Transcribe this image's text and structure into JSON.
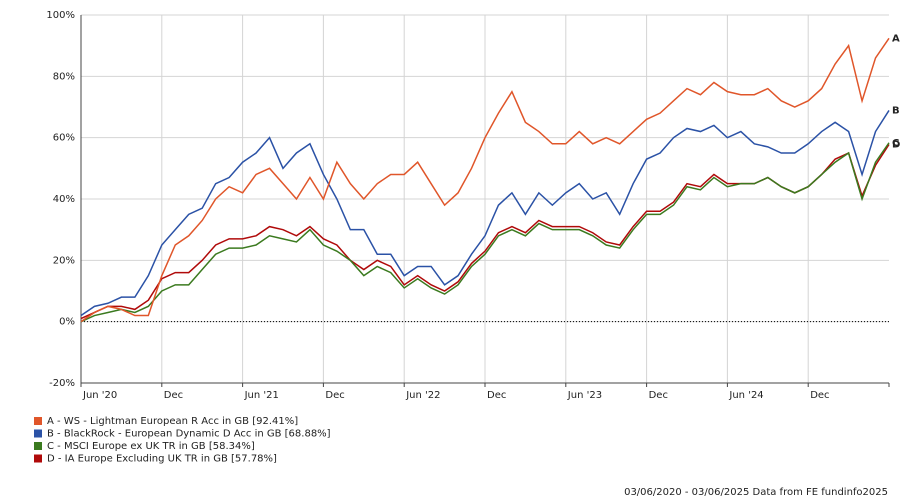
{
  "chart_data": {
    "type": "line",
    "categories": [
      "Jun '20",
      null,
      null,
      null,
      null,
      null,
      "Dec",
      null,
      null,
      null,
      null,
      null,
      "Jun '21",
      null,
      null,
      null,
      null,
      null,
      "Dec",
      null,
      null,
      null,
      null,
      null,
      "Jun '22",
      null,
      null,
      null,
      null,
      null,
      "Dec",
      null,
      null,
      null,
      null,
      null,
      "Jun '23",
      null,
      null,
      null,
      null,
      null,
      "Dec",
      null,
      null,
      null,
      null,
      null,
      "Jun '24",
      null,
      null,
      null,
      null,
      null,
      "Dec",
      null,
      null,
      null,
      null,
      null,
      null
    ],
    "ylim": [
      -20,
      100
    ],
    "yticks": [
      {
        "value": -20,
        "label": "-20%"
      },
      {
        "value": 0,
        "label": "0%"
      },
      {
        "value": 20,
        "label": "20%"
      },
      {
        "value": 40,
        "label": "40%"
      },
      {
        "value": 60,
        "label": "60%"
      },
      {
        "value": 80,
        "label": "80%"
      },
      {
        "value": 100,
        "label": "100%"
      }
    ],
    "grid": true,
    "zero_line": true,
    "legend": "bottom-left",
    "footer": "03/06/2020 - 03/06/2025 Data from FE fundinfo2025",
    "series": [
      {
        "name": "A - WS - Lightman European R Acc in GB [92.41%]",
        "end_label": "A",
        "color": "#e0562a",
        "values": [
          0,
          3,
          5,
          4,
          2,
          2,
          15,
          25,
          28,
          33,
          40,
          44,
          42,
          48,
          50,
          45,
          40,
          47,
          40,
          52,
          45,
          40,
          45,
          48,
          48,
          52,
          45,
          38,
          42,
          50,
          60,
          68,
          75,
          65,
          62,
          58,
          58,
          62,
          58,
          60,
          58,
          62,
          66,
          68,
          72,
          76,
          74,
          78,
          75,
          74,
          74,
          76,
          72,
          70,
          72,
          76,
          84,
          90,
          72,
          86,
          92.41
        ]
      },
      {
        "name": "B - BlackRock - European Dynamic D Acc in GB [68.88%]",
        "end_label": "B",
        "color": "#2b52a6",
        "values": [
          2,
          5,
          6,
          8,
          8,
          15,
          25,
          30,
          35,
          37,
          45,
          47,
          52,
          55,
          60,
          50,
          55,
          58,
          48,
          40,
          30,
          30,
          22,
          22,
          15,
          18,
          18,
          12,
          15,
          22,
          28,
          38,
          42,
          35,
          42,
          38,
          42,
          45,
          40,
          42,
          35,
          45,
          53,
          55,
          60,
          63,
          62,
          64,
          60,
          62,
          58,
          57,
          55,
          55,
          58,
          62,
          65,
          62,
          48,
          62,
          68.88
        ]
      },
      {
        "name": "C - MSCI Europe ex UK TR in GB [58.34%]",
        "end_label": "C",
        "color": "#3b7a1f",
        "values": [
          0,
          2,
          3,
          4,
          3,
          5,
          10,
          12,
          12,
          17,
          22,
          24,
          24,
          25,
          28,
          27,
          26,
          30,
          25,
          23,
          20,
          15,
          18,
          16,
          11,
          14,
          11,
          9,
          12,
          18,
          22,
          28,
          30,
          28,
          32,
          30,
          30,
          30,
          28,
          25,
          24,
          30,
          35,
          35,
          38,
          44,
          43,
          47,
          44,
          45,
          45,
          47,
          44,
          42,
          44,
          48,
          52,
          55,
          40,
          52,
          58.34
        ]
      },
      {
        "name": "D - IA Europe Excluding UK TR in GB [57.78%]",
        "end_label": "D",
        "color": "#b00a0a",
        "values": [
          1,
          3,
          5,
          5,
          4,
          7,
          14,
          16,
          16,
          20,
          25,
          27,
          27,
          28,
          31,
          30,
          28,
          31,
          27,
          25,
          20,
          17,
          20,
          18,
          12,
          15,
          12,
          10,
          13,
          19,
          23,
          29,
          31,
          29,
          33,
          31,
          31,
          31,
          29,
          26,
          25,
          31,
          36,
          36,
          39,
          45,
          44,
          48,
          45,
          45,
          45,
          47,
          44,
          42,
          44,
          48,
          53,
          55,
          41,
          51,
          57.78
        ]
      }
    ]
  }
}
